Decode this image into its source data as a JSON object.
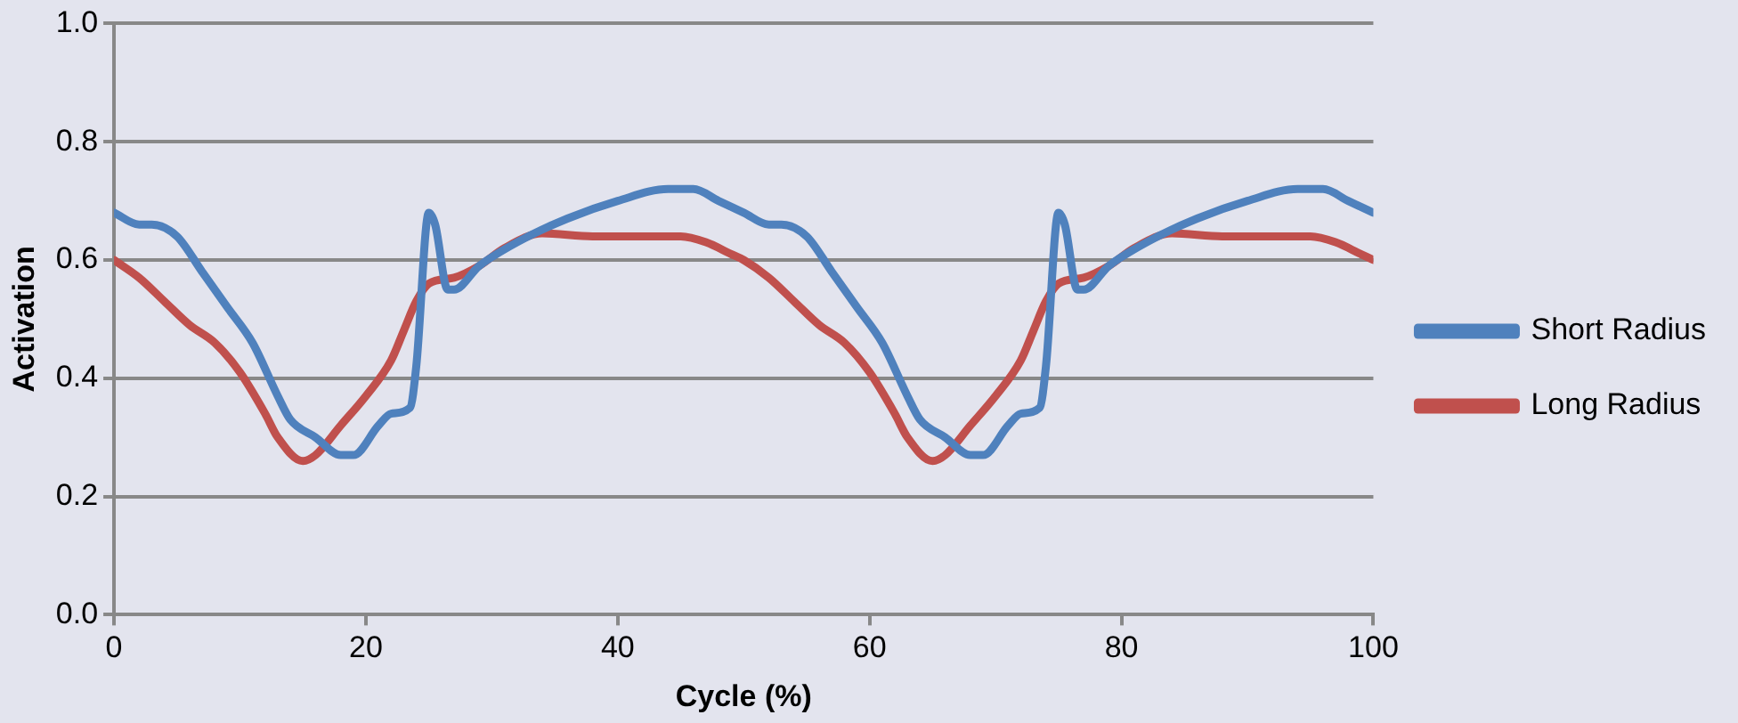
{
  "chart_data": {
    "type": "line",
    "xlabel": "Cycle (%)",
    "ylabel": "Activation",
    "xlim": [
      0,
      100
    ],
    "xticks": [
      0,
      20,
      40,
      60,
      80,
      100
    ],
    "ylim": [
      0,
      1
    ],
    "yticks": [
      {
        "value": 0,
        "label": "0.0"
      },
      {
        "value": 0.2,
        "label": "0.2"
      },
      {
        "value": 0.4,
        "label": "0.4"
      },
      {
        "value": 0.6,
        "label": "0.6"
      },
      {
        "value": 0.8,
        "label": "0.8"
      },
      {
        "value": 1,
        "label": "1.0"
      }
    ],
    "grid": "y",
    "legend": "right",
    "marker": "none",
    "line_style": "solid",
    "series": [
      {
        "name": "Short Radius",
        "color": "#4f81bd",
        "x": [
          0,
          2,
          3,
          5,
          7,
          9,
          11,
          13,
          14,
          16,
          18,
          19,
          21,
          22,
          23.5,
          24,
          25,
          25.5,
          26.5,
          27,
          29,
          32,
          36,
          40,
          44,
          46,
          48,
          50,
          52,
          53,
          55,
          57,
          59,
          61,
          63,
          64,
          66,
          68,
          69,
          71,
          72,
          73.5,
          74,
          75,
          75.5,
          76.5,
          77,
          79,
          82,
          86,
          90,
          94,
          96,
          98,
          100
        ],
        "values": [
          0.68,
          0.66,
          0.66,
          0.64,
          0.58,
          0.52,
          0.46,
          0.37,
          0.33,
          0.3,
          0.27,
          0.27,
          0.32,
          0.34,
          0.35,
          0.42,
          0.68,
          0.66,
          0.55,
          0.55,
          0.59,
          0.63,
          0.67,
          0.7,
          0.72,
          0.72,
          0.7,
          0.68,
          0.66,
          0.66,
          0.64,
          0.58,
          0.52,
          0.46,
          0.37,
          0.33,
          0.3,
          0.27,
          0.27,
          0.32,
          0.34,
          0.35,
          0.42,
          0.68,
          0.66,
          0.55,
          0.55,
          0.59,
          0.63,
          0.67,
          0.7,
          0.72,
          0.72,
          0.7,
          0.68
        ]
      },
      {
        "name": "Long Radius",
        "color": "#c0504d",
        "x": [
          0,
          2,
          4,
          6,
          8,
          10,
          12,
          13,
          15,
          16,
          18,
          20,
          22,
          23,
          24,
          25,
          27,
          29,
          31,
          34,
          38,
          42,
          45,
          47,
          49,
          50,
          52,
          54,
          56,
          58,
          60,
          62,
          63,
          65,
          66,
          68,
          70,
          72,
          73,
          74,
          75,
          77,
          79,
          81,
          84,
          88,
          92,
          95,
          97,
          99,
          100
        ],
        "values": [
          0.6,
          0.57,
          0.53,
          0.49,
          0.46,
          0.41,
          0.34,
          0.3,
          0.26,
          0.27,
          0.32,
          0.37,
          0.43,
          0.48,
          0.53,
          0.56,
          0.57,
          0.59,
          0.62,
          0.645,
          0.64,
          0.64,
          0.64,
          0.63,
          0.61,
          0.6,
          0.57,
          0.53,
          0.49,
          0.46,
          0.41,
          0.34,
          0.3,
          0.26,
          0.27,
          0.32,
          0.37,
          0.43,
          0.48,
          0.53,
          0.56,
          0.57,
          0.59,
          0.62,
          0.645,
          0.64,
          0.64,
          0.64,
          0.63,
          0.61,
          0.6
        ]
      }
    ]
  }
}
